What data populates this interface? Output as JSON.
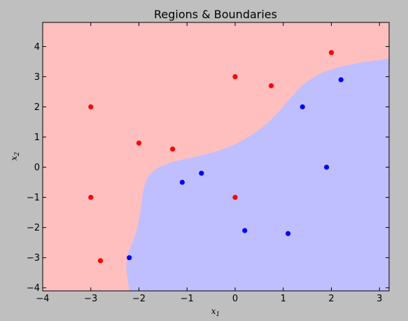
{
  "chart_data": {
    "type": "scatter",
    "title": "Regions & Boundaries",
    "xlabel": "x",
    "xlabel_sub": "1",
    "ylabel": "x",
    "ylabel_sub": "2",
    "xlim": [
      -4,
      3.2
    ],
    "ylim": [
      -4.1,
      4.8
    ],
    "xticks": [
      -4,
      -3,
      -2,
      -1,
      0,
      1,
      2,
      3
    ],
    "yticks": [
      -4,
      -3,
      -2,
      -1,
      0,
      1,
      2,
      3,
      4
    ],
    "grid": false,
    "colors": {
      "background": "#bfbfbf",
      "red_region": "#ffbfbf",
      "blue_region": "#bfbfff",
      "red_point": "#ff0000",
      "blue_point": "#0000ff"
    },
    "boundary": [
      [
        -2.2,
        -4.1
      ],
      [
        -2.25,
        -3.6
      ],
      [
        -2.27,
        -3.2
      ],
      [
        -2.2,
        -2.7
      ],
      [
        -2.05,
        -2.2
      ],
      [
        -1.95,
        -1.3
      ],
      [
        -1.9,
        -0.6
      ],
      [
        -1.75,
        -0.15
      ],
      [
        -1.4,
        0.15
      ],
      [
        -0.8,
        0.35
      ],
      [
        -0.2,
        0.6
      ],
      [
        0.3,
        1.0
      ],
      [
        0.75,
        1.55
      ],
      [
        1.1,
        2.2
      ],
      [
        1.4,
        2.75
      ],
      [
        1.8,
        3.15
      ],
      [
        2.3,
        3.38
      ],
      [
        2.8,
        3.52
      ],
      [
        3.2,
        3.6
      ]
    ],
    "series": [
      {
        "color": "red",
        "points": [
          [
            -3,
            2
          ],
          [
            -2,
            0.8
          ],
          [
            -1.3,
            0.6
          ],
          [
            -3,
            -1
          ],
          [
            -2.8,
            -3.1
          ],
          [
            0,
            3
          ],
          [
            0.75,
            2.7
          ],
          [
            2,
            3.8
          ],
          [
            0,
            -1
          ]
        ]
      },
      {
        "color": "blue",
        "points": [
          [
            -1.1,
            -0.5
          ],
          [
            -0.7,
            -0.2
          ],
          [
            -2.2,
            -3
          ],
          [
            0.2,
            -2.1
          ],
          [
            1.1,
            -2.2
          ],
          [
            1.4,
            2
          ],
          [
            1.9,
            0
          ],
          [
            2.2,
            2.9
          ]
        ]
      }
    ]
  }
}
